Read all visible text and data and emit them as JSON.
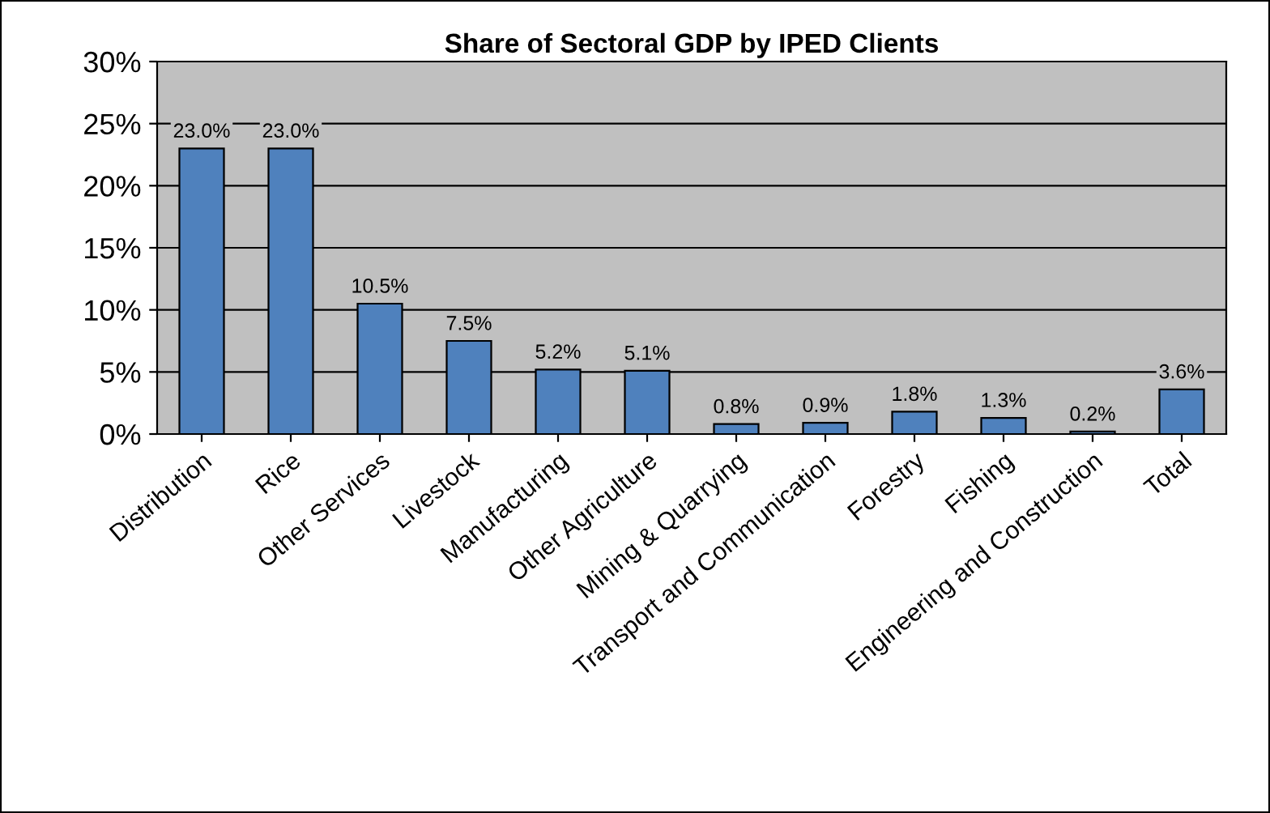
{
  "chart_data": {
    "type": "bar",
    "title": "Share of Sectoral GDP by IPED Clients",
    "categories": [
      "Distribution",
      "Rice",
      "Other Services",
      "Livestock",
      "Manufacturing",
      "Other Agriculture",
      "Mining & Quarrying",
      "Transport and Communication",
      "Forestry",
      "Fishing",
      "Engineering and Construction",
      "Total"
    ],
    "values": [
      23.0,
      23.0,
      10.5,
      7.5,
      5.2,
      5.1,
      0.8,
      0.9,
      1.8,
      1.3,
      0.2,
      3.6
    ],
    "value_labels": [
      "23.0%",
      "23.0%",
      "10.5%",
      "7.5%",
      "5.2%",
      "5.1%",
      "0.8%",
      "0.9%",
      "1.8%",
      "1.3%",
      "0.2%",
      "3.6%"
    ],
    "color": "#4f81bd",
    "ylim": [
      0,
      30
    ],
    "yticks": [
      {
        "value": 0,
        "label": "0%"
      },
      {
        "value": 5,
        "label": "5%"
      },
      {
        "value": 10,
        "label": "10%"
      },
      {
        "value": 15,
        "label": "15%"
      },
      {
        "value": 20,
        "label": "20%"
      },
      {
        "value": 25,
        "label": "25%"
      },
      {
        "value": 30,
        "label": "30%"
      }
    ],
    "grid": "y"
  }
}
